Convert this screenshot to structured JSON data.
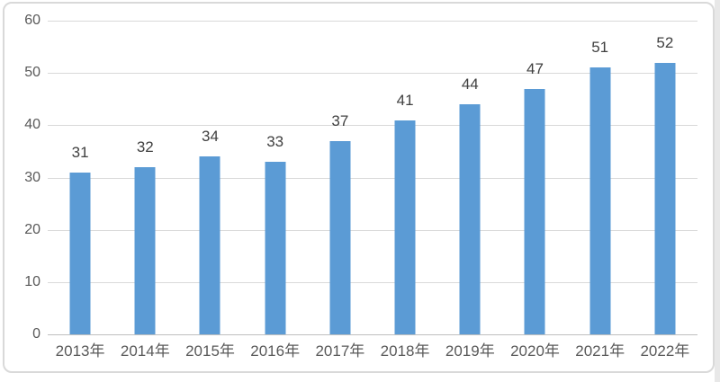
{
  "chart_data": {
    "type": "bar",
    "title": "",
    "xlabel": "",
    "ylabel": "",
    "categories": [
      "2013年",
      "2014年",
      "2015年",
      "2016年",
      "2017年",
      "2018年",
      "2019年",
      "2020年",
      "2021年",
      "2022年"
    ],
    "values": [
      31,
      32,
      34,
      33,
      37,
      41,
      44,
      47,
      51,
      52
    ],
    "ylim": [
      0,
      60
    ],
    "yticks": [
      0,
      10,
      20,
      30,
      40,
      50,
      60
    ],
    "grid": true,
    "legend_position": "none",
    "data_labels_shown": true,
    "colors": {
      "bar": "#5B9BD5",
      "gridline": "#D9D9D9",
      "axis_line": "#BFBFBF",
      "tick_label": "#595959",
      "value_label": "#404040",
      "frame_border": "#D9D9D9",
      "background": "#FFFFFF"
    }
  }
}
